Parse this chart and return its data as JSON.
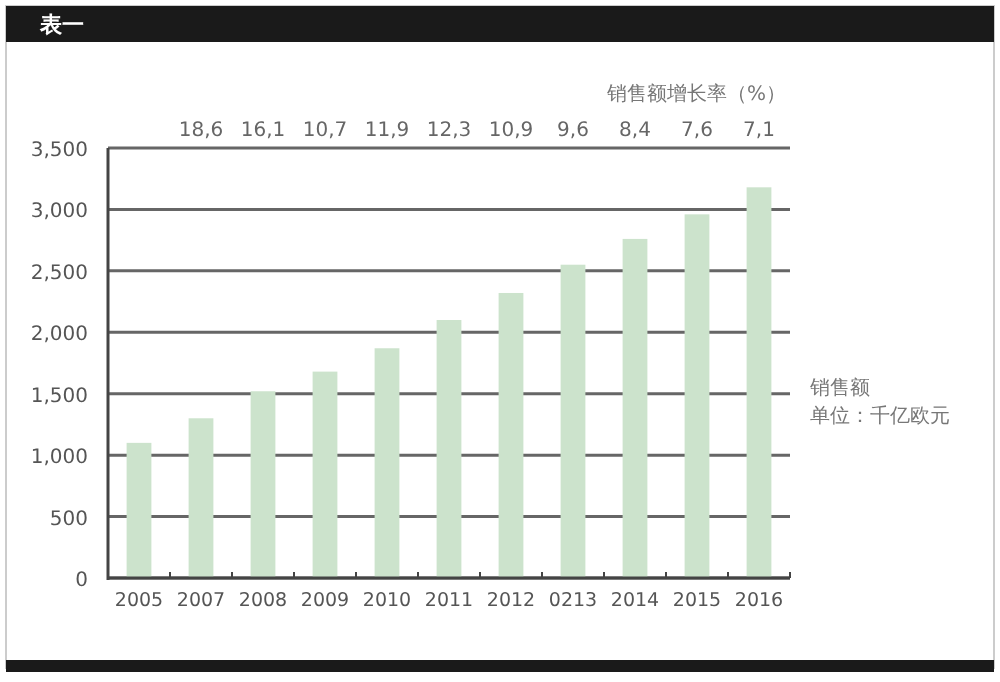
{
  "chart_data": {
    "type": "bar",
    "title": "表一",
    "ylabel": "销售额",
    "categories": [
      "2005",
      "2007",
      "2008",
      "2009",
      "2010",
      "2011",
      "2012",
      "0213",
      "2014",
      "2015",
      "2016"
    ],
    "values": [
      1100,
      1300,
      1520,
      1680,
      1870,
      2100,
      2320,
      2550,
      2760,
      2960,
      3180
    ],
    "color": "#cce3cc",
    "ylim": [
      0,
      3500
    ],
    "yticks": [
      0,
      {
        "value": 500,
        "label": "500"
      },
      {
        "value": 1000,
        "label": "1,000"
      },
      {
        "value": 1500,
        "label": "1,500"
      },
      {
        "value": 2000,
        "label": "2,000"
      },
      {
        "value": 2500,
        "label": "2,500"
      },
      {
        "value": 3000,
        "label": "3,000"
      },
      {
        "value": 3500,
        "label": "3,500"
      }
    ],
    "grid": "y",
    "annotations": [
      "销售额增长率（%）",
      "18,6",
      "16,1",
      "10,7",
      "11,9",
      "12,3",
      "10,9",
      "9,6",
      "8,4",
      "7,6",
      "7,1",
      "单位：千亿欧元"
    ]
  }
}
